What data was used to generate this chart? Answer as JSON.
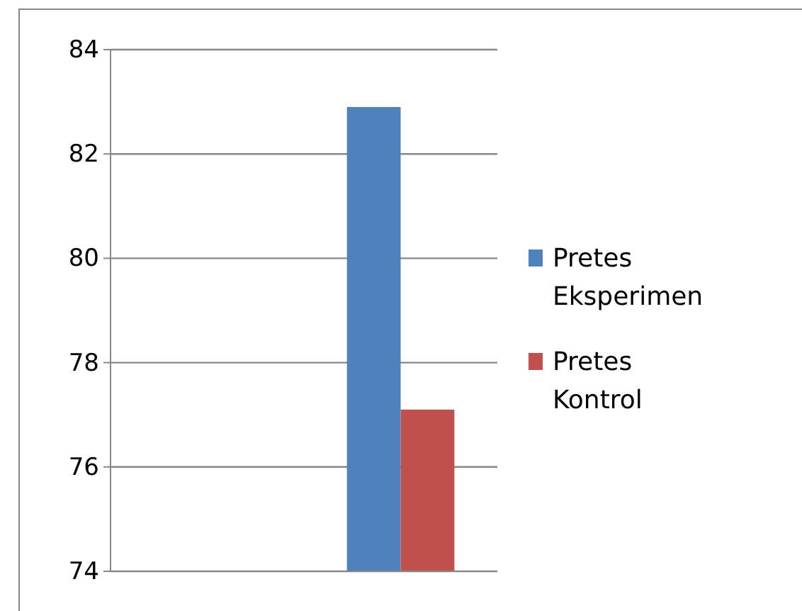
{
  "chart_data": {
    "type": "bar",
    "categories": [
      null,
      null
    ],
    "series": [
      {
        "name": "Pretes Eksperimen",
        "color": "#4f81bd",
        "values": [
          null,
          82.9
        ]
      },
      {
        "name": "Pretes Kontrol",
        "color": "#c0504d",
        "values": [
          null,
          77.1
        ]
      }
    ],
    "ylim": [
      74,
      84
    ],
    "yticks": [
      74,
      76,
      78,
      80,
      82,
      84
    ],
    "grid": "y",
    "legend": "right"
  }
}
